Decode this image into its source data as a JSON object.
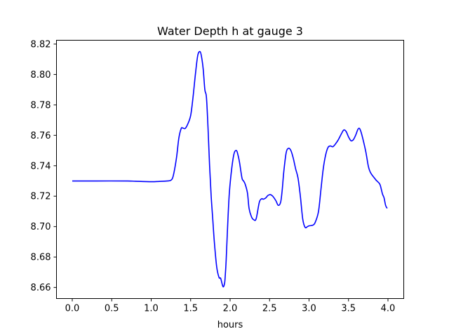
{
  "chart_data": {
    "type": "line",
    "title": "Water Depth h at gauge 3",
    "xlabel": "hours",
    "ylabel": "",
    "xlim": [
      -0.2,
      4.2
    ],
    "ylim": [
      8.6527,
      8.8225
    ],
    "xticks": [
      0.0,
      0.5,
      1.0,
      1.5,
      2.0,
      2.5,
      3.0,
      3.5,
      4.0
    ],
    "xtick_labels": [
      "0.0",
      "0.5",
      "1.0",
      "1.5",
      "2.0",
      "2.5",
      "3.0",
      "3.5",
      "4.0"
    ],
    "yticks": [
      8.66,
      8.68,
      8.7,
      8.72,
      8.74,
      8.76,
      8.78,
      8.8,
      8.82
    ],
    "ytick_labels": [
      "8.66",
      "8.68",
      "8.70",
      "8.72",
      "8.74",
      "8.76",
      "8.78",
      "8.80",
      "8.82"
    ],
    "grid": false,
    "series": [
      {
        "color": "#0000ff",
        "x": [
          0.0,
          0.3,
          0.7,
          0.8,
          1.0,
          1.1,
          1.2,
          1.25,
          1.28,
          1.32,
          1.35,
          1.38,
          1.4,
          1.43,
          1.46,
          1.5,
          1.53,
          1.56,
          1.59,
          1.62,
          1.64,
          1.66,
          1.68,
          1.7,
          1.72,
          1.74,
          1.76,
          1.78,
          1.8,
          1.83,
          1.86,
          1.88,
          1.91,
          1.93,
          1.94,
          1.95,
          1.97,
          1.99,
          2.02,
          2.05,
          2.08,
          2.1,
          2.12,
          2.15,
          2.17,
          2.19,
          2.22,
          2.24,
          2.27,
          2.3,
          2.33,
          2.37,
          2.4,
          2.42,
          2.45,
          2.48,
          2.51,
          2.54,
          2.58,
          2.61,
          2.64,
          2.66,
          2.68,
          2.71,
          2.74,
          2.77,
          2.8,
          2.83,
          2.86,
          2.89,
          2.92,
          2.95,
          2.98,
          3.0,
          3.05,
          3.08,
          3.12,
          3.15,
          3.18,
          3.21,
          3.24,
          3.27,
          3.3,
          3.33,
          3.37,
          3.41,
          3.44,
          3.47,
          3.5,
          3.53,
          3.56,
          3.59,
          3.62,
          3.64,
          3.66,
          3.69,
          3.72,
          3.75,
          3.77,
          3.79,
          3.82,
          3.85,
          3.87,
          3.9,
          3.93,
          3.95,
          3.97,
          3.99
        ],
        "y": [
          8.73,
          8.73,
          8.73,
          8.7298,
          8.7295,
          8.7297,
          8.73,
          8.7305,
          8.7335,
          8.745,
          8.758,
          8.7645,
          8.7648,
          8.7645,
          8.767,
          8.773,
          8.785,
          8.8,
          8.8125,
          8.815,
          8.811,
          8.803,
          8.79,
          8.785,
          8.765,
          8.74,
          8.72,
          8.705,
          8.69,
          8.6735,
          8.6665,
          8.666,
          8.6605,
          8.6628,
          8.669,
          8.678,
          8.702,
          8.722,
          8.738,
          8.748,
          8.75,
          8.747,
          8.742,
          8.732,
          8.73,
          8.728,
          8.722,
          8.712,
          8.7065,
          8.7045,
          8.7052,
          8.716,
          8.7183,
          8.718,
          8.7188,
          8.7205,
          8.721,
          8.72,
          8.717,
          8.714,
          8.716,
          8.724,
          8.736,
          8.7485,
          8.7515,
          8.75,
          8.745,
          8.738,
          8.732,
          8.72,
          8.705,
          8.6995,
          8.7,
          8.7005,
          8.701,
          8.703,
          8.71,
          8.724,
          8.738,
          8.747,
          8.752,
          8.753,
          8.7525,
          8.754,
          8.757,
          8.761,
          8.7635,
          8.7625,
          8.759,
          8.7565,
          8.757,
          8.76,
          8.764,
          8.7645,
          8.762,
          8.756,
          8.749,
          8.74,
          8.7365,
          8.7345,
          8.7325,
          8.7305,
          8.7295,
          8.7275,
          8.7215,
          8.719,
          8.714,
          8.712
        ]
      }
    ]
  }
}
